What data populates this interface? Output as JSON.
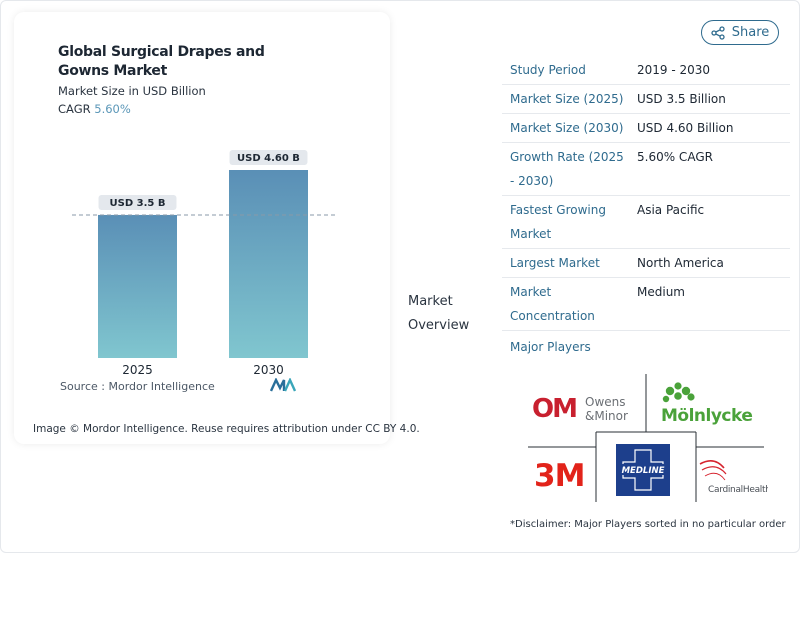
{
  "chart_data": {
    "type": "bar",
    "title": "Global Surgical Drapes and Gowns Market",
    "subtitle": "Market Size in USD Billion",
    "cagr_label": "CAGR",
    "cagr_value": "5.60%",
    "categories": [
      "2025",
      "2030"
    ],
    "values": [
      3.5,
      4.6
    ],
    "data_labels": [
      "USD 3.5 B",
      "USD 4.60 B"
    ],
    "ylim": [
      0,
      4.6
    ],
    "reference_line": 3.5,
    "bar_colors": [
      "#5a8fb6",
      "#7fc0cc"
    ],
    "xlabel": "",
    "ylabel": ""
  },
  "source": {
    "label": "Source :",
    "name": "Mordor Intelligence"
  },
  "credit": "Image © Mordor Intelligence. Reuse requires attribution under CC BY 4.0.",
  "share": {
    "label": "Share"
  },
  "overview": {
    "line1": "Market",
    "line2": "Overview"
  },
  "facts": [
    {
      "key": "Study Period",
      "value": "2019 - 2030"
    },
    {
      "key": "Market Size (2025)",
      "value": "USD 3.5 Billion"
    },
    {
      "key": "Market Size (2030)",
      "value": "USD 4.60 Billion"
    },
    {
      "key": "Growth Rate (2025 - 2030)",
      "value": "5.60% CAGR"
    },
    {
      "key": "Fastest Growing Market",
      "value": "Asia Pacific"
    },
    {
      "key": "Largest Market",
      "value": "North America"
    },
    {
      "key": "Market Concentration",
      "value": "Medium"
    }
  ],
  "players": {
    "label": "Major Players",
    "logos": {
      "owens_minor": {
        "mark": "OM",
        "line1": "Owens",
        "line2": "&Minor"
      },
      "molnlycke": {
        "text": "Mölnlycke"
      },
      "three_m": {
        "text": "3M"
      },
      "medline": {
        "text": "MEDLINE"
      },
      "cardinal": {
        "text": "CardinalHealth"
      }
    }
  },
  "disclaimer": "*Disclaimer: Major Players sorted in no particular order",
  "colors": {
    "accent": "#2f6b8e",
    "bar_top": "#5a8fb6",
    "bar_bottom": "#80c6cf",
    "owens_red": "#c8202f",
    "molnlycke_green": "#4aa23a",
    "medline_blue": "#1d3f8c"
  }
}
